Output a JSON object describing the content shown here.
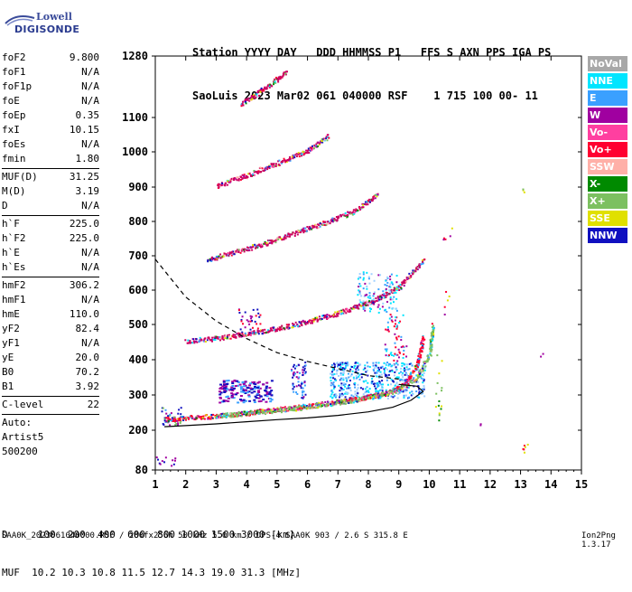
{
  "logo": {
    "line1": "Lowell",
    "line2": "DIGISONDE"
  },
  "header": {
    "row1": "Station YYYY DAY   DDD HHMMSS P1   FFS S AXN PPS IGA PS",
    "row2": "SaoLuis 2023 Mar02 061 040000 RSF    1 715 100 00- 11"
  },
  "params": [
    {
      "k": "foF2",
      "v": "9.800"
    },
    {
      "k": "foF1",
      "v": "N/A"
    },
    {
      "k": "foF1p",
      "v": "N/A"
    },
    {
      "k": "foE",
      "v": "N/A"
    },
    {
      "k": "foEp",
      "v": "0.35"
    },
    {
      "k": "fxI",
      "v": "10.15"
    },
    {
      "k": "foEs",
      "v": "N/A"
    },
    {
      "k": "fmin",
      "v": "1.80"
    },
    {
      "sep": true
    },
    {
      "k": "MUF(D)",
      "v": "31.25"
    },
    {
      "k": "M(D)",
      "v": "3.19"
    },
    {
      "k": "D",
      "v": "N/A"
    },
    {
      "sep": true
    },
    {
      "k": "h`F",
      "v": "225.0"
    },
    {
      "k": "h`F2",
      "v": "225.0"
    },
    {
      "k": "h`E",
      "v": "N/A"
    },
    {
      "k": "h`Es",
      "v": "N/A"
    },
    {
      "sep": true
    },
    {
      "k": "hmF2",
      "v": "306.2"
    },
    {
      "k": "hmF1",
      "v": "N/A"
    },
    {
      "k": "hmE",
      "v": "110.0"
    },
    {
      "k": "yF2",
      "v": "82.4"
    },
    {
      "k": "yF1",
      "v": "N/A"
    },
    {
      "k": "yE",
      "v": "20.0"
    },
    {
      "k": "B0",
      "v": "70.2"
    },
    {
      "k": "B1",
      "v": "3.92"
    },
    {
      "sep": true
    },
    {
      "k": "C-level",
      "v": "22"
    },
    {
      "sep": true
    }
  ],
  "auto": {
    "l1": "Auto:",
    "l2": "Artist5",
    "l3": "500200"
  },
  "legend": [
    {
      "label": "NoVal",
      "color": "#a8a8a8"
    },
    {
      "label": "NNE",
      "color": "#00e5ff"
    },
    {
      "label": "E",
      "color": "#3aa0ff"
    },
    {
      "label": "W",
      "color": "#a000a0"
    },
    {
      "label": "Vo-",
      "color": "#ff3fa0"
    },
    {
      "label": "Vo+",
      "color": "#ff0030"
    },
    {
      "label": "SSW",
      "color": "#ffb0a8"
    },
    {
      "label": "X-",
      "color": "#008a00"
    },
    {
      "label": "X+",
      "color": "#7cc060"
    },
    {
      "label": "SSE",
      "color": "#e0e000"
    },
    {
      "label": "NNW",
      "color": "#1010c0"
    }
  ],
  "chart_data": {
    "type": "scatter",
    "xlim": [
      1,
      15
    ],
    "ylim": [
      80,
      1280
    ],
    "xticks": [
      "1",
      "2",
      "3",
      "4",
      "5",
      "6",
      "7",
      "8",
      "9",
      "10",
      "11",
      "12",
      "13",
      "14",
      "15"
    ],
    "yticks": [
      "80",
      "200",
      "300",
      "400",
      "500",
      "600",
      "700",
      "800",
      "900",
      "1000",
      "1100",
      "1280"
    ],
    "traces": [
      {
        "name": "F2 O-trace",
        "color": "#ff0030",
        "x": [
          1.3,
          2,
          3,
          4,
          5,
          6,
          7,
          8,
          8.5,
          9,
          9.3,
          9.6,
          9.8
        ],
        "y": [
          232,
          236,
          242,
          250,
          260,
          270,
          282,
          296,
          305,
          322,
          345,
          390,
          470
        ]
      },
      {
        "name": "F2 X-trace",
        "color": "#7cc060",
        "x": [
          3,
          4,
          5,
          6,
          7,
          8,
          9,
          9.6,
          10,
          10.1
        ],
        "y": [
          242,
          250,
          258,
          268,
          280,
          294,
          315,
          350,
          420,
          500
        ]
      },
      {
        "name": "Profile",
        "color": "#000000",
        "x": [
          1.3,
          2,
          3,
          4,
          5,
          6,
          7,
          8,
          8.8,
          9.4,
          9.8,
          9.6,
          9.0
        ],
        "y": [
          210,
          213,
          218,
          224,
          230,
          235,
          242,
          252,
          265,
          285,
          310,
          325,
          330
        ]
      },
      {
        "name": "Dashed model",
        "color": "#000000",
        "x": [
          1,
          2,
          3,
          4,
          5,
          6,
          7,
          8,
          9
        ],
        "y": [
          690,
          580,
          510,
          460,
          420,
          395,
          375,
          355,
          345
        ]
      },
      {
        "name": "2nd hop",
        "color": "#cc0060",
        "x": [
          2,
          3,
          4,
          5,
          6,
          7,
          8,
          9,
          9.8
        ],
        "y": [
          455,
          462,
          475,
          490,
          510,
          535,
          565,
          610,
          690
        ]
      },
      {
        "name": "3rd hop",
        "color": "#cc0060",
        "x": [
          2.7,
          3.5,
          4.5,
          5.5,
          6.5,
          7.5,
          8.3
        ],
        "y": [
          690,
          710,
          735,
          765,
          795,
          830,
          880
        ]
      },
      {
        "name": "4th hop",
        "color": "#cc0060",
        "x": [
          3,
          4,
          5,
          6,
          6.7
        ],
        "y": [
          905,
          935,
          970,
          1005,
          1050
        ]
      },
      {
        "name": "5th hop",
        "color": "#cc0060",
        "x": [
          3.8,
          4.3,
          4.8,
          5.3
        ],
        "y": [
          1140,
          1170,
          1200,
          1240
        ]
      }
    ]
  },
  "bottom": {
    "l1": "D     100  200  400  600  800 1000 1500 3000 [km]",
    "l2": "MUF  10.2 10.3 10.8 11.5 12.7 14.3 19.0 31.3 [MHz]"
  },
  "footer": "SAA0K_2023061040000.RSF / 280fx256h 50 kHz 5.0 km / DPS-4 SAA0K 903 / 2.6 S 315.8 E",
  "version": "Ion2Png 1.3.17"
}
